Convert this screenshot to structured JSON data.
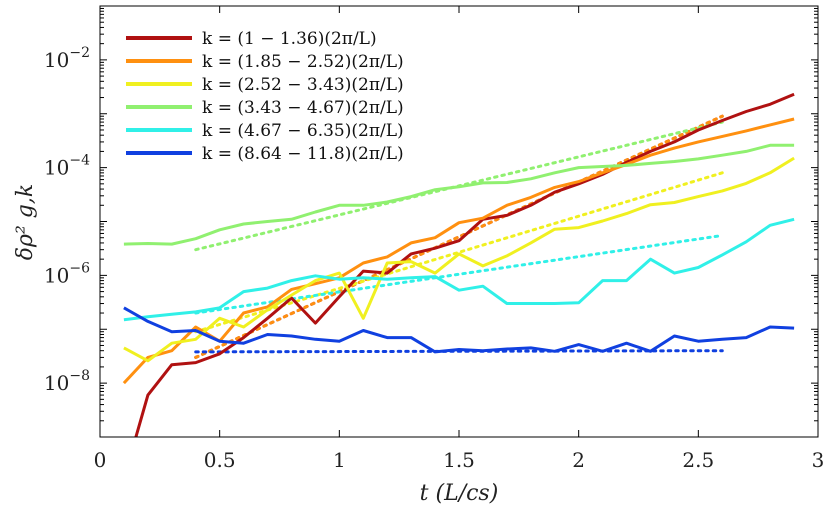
{
  "chart_data": {
    "type": "line",
    "title": "",
    "xlabel": "t (L/c_s)",
    "ylabel": "δρ²_g,k",
    "xlabel_display": "t (L/cs)",
    "ylabel_display": "δρ² g,k",
    "xlim": [
      0,
      3
    ],
    "ylim": [
      1e-09,
      0.1
    ],
    "yscale": "log",
    "xticks": [
      0,
      0.5,
      1,
      1.5,
      2,
      2.5,
      3
    ],
    "xtick_labels": [
      "0",
      "0.5",
      "1",
      "1.5",
      "2",
      "2.5",
      "3"
    ],
    "yticks": [
      1e-08,
      1e-06,
      0.0001,
      0.01
    ],
    "ytick_labels": [
      {
        "base": "10",
        "exp": "−8"
      },
      {
        "base": "10",
        "exp": "−6"
      },
      {
        "base": "10",
        "exp": "−4"
      },
      {
        "base": "10",
        "exp": "−2"
      }
    ],
    "legend_position": "top-left",
    "series": [
      {
        "name": "k = (1 − 1.36)(2π/L)",
        "color": "#b01111",
        "x": [
          0.15,
          0.2,
          0.3,
          0.4,
          0.5,
          0.6,
          0.7,
          0.8,
          0.9,
          1.0,
          1.1,
          1.2,
          1.3,
          1.4,
          1.5,
          1.6,
          1.7,
          1.8,
          1.9,
          2.0,
          2.1,
          2.2,
          2.3,
          2.4,
          2.5,
          2.6,
          2.7,
          2.8,
          2.9
        ],
        "y": [
          1e-09,
          6e-09,
          2.2e-08,
          2.4e-08,
          3.5e-08,
          7e-08,
          1.6e-07,
          3.8e-07,
          1.3e-07,
          4e-07,
          1.2e-06,
          1.1e-06,
          2.5e-06,
          3.2e-06,
          4.4e-06,
          1.1e-05,
          1.3e-05,
          2e-05,
          3.5e-05,
          5e-05,
          7.5e-05,
          0.000125,
          0.0002,
          0.0003,
          0.0005,
          0.00075,
          0.0011,
          0.0015,
          0.0023
        ],
        "fit": {
          "x": [
            0.4,
            2.6
          ],
          "y": [
            3e-08,
            0.0009
          ]
        }
      },
      {
        "name": "k = (1.85 − 2.52)(2π/L)",
        "color": "#ff9010",
        "x": [
          0.1,
          0.2,
          0.3,
          0.4,
          0.5,
          0.6,
          0.7,
          0.8,
          0.9,
          1.0,
          1.1,
          1.2,
          1.3,
          1.4,
          1.5,
          1.6,
          1.7,
          1.8,
          1.9,
          2.0,
          2.1,
          2.2,
          2.3,
          2.4,
          2.5,
          2.6,
          2.7,
          2.8,
          2.9
        ],
        "y": [
          1e-08,
          3e-08,
          4e-08,
          1.1e-07,
          6e-08,
          2e-07,
          2.6e-07,
          5.5e-07,
          7e-07,
          9e-07,
          1.7e-06,
          2.2e-06,
          4e-06,
          5e-06,
          9.5e-06,
          1.15e-05,
          2e-05,
          2.8e-05,
          4.3e-05,
          5.5e-05,
          8e-05,
          0.000115,
          0.00017,
          0.00023,
          0.0003,
          0.00038,
          0.00048,
          0.00062,
          0.0008
        ],
        "fit": {
          "x": [
            0.4,
            2.6
          ],
          "y": [
            3e-08,
            0.0009
          ]
        }
      },
      {
        "name": "k = (2.52 − 3.43)(2π/L)",
        "color": "#f0f020",
        "x": [
          0.1,
          0.2,
          0.3,
          0.4,
          0.5,
          0.6,
          0.7,
          0.8,
          0.9,
          1.0,
          1.1,
          1.2,
          1.3,
          1.4,
          1.5,
          1.6,
          1.7,
          1.8,
          1.9,
          2.0,
          2.1,
          2.2,
          2.3,
          2.4,
          2.5,
          2.6,
          2.7,
          2.8,
          2.9
        ],
        "y": [
          4.5e-08,
          2.6e-08,
          5.5e-08,
          6.5e-08,
          1.6e-07,
          1.1e-07,
          2.3e-07,
          4.3e-07,
          8e-07,
          1.1e-06,
          1.6e-07,
          1.7e-06,
          1.8e-06,
          1.1e-06,
          2.5e-06,
          1.5e-06,
          2.3e-06,
          4e-06,
          7.2e-06,
          7.7e-06,
          1.02e-05,
          1.4e-05,
          2.05e-05,
          2.25e-05,
          2.9e-05,
          3.7e-05,
          5.1e-05,
          8e-05,
          0.00015
        ],
        "fit": {
          "x": [
            0.4,
            2.6
          ],
          "y": [
            9e-08,
            8e-05
          ]
        }
      },
      {
        "name": "k = (3.43 − 4.67)(2π/L)",
        "color": "#90f070",
        "x": [
          0.1,
          0.2,
          0.3,
          0.4,
          0.5,
          0.6,
          0.7,
          0.8,
          0.9,
          1.0,
          1.1,
          1.2,
          1.3,
          1.4,
          1.5,
          1.6,
          1.7,
          1.8,
          1.9,
          2.0,
          2.1,
          2.2,
          2.3,
          2.4,
          2.5,
          2.6,
          2.7,
          2.8,
          2.9
        ],
        "y": [
          3.8e-06,
          3.9e-06,
          3.8e-06,
          4.8e-06,
          7e-06,
          9e-06,
          1e-05,
          1.1e-05,
          1.5e-05,
          2e-05,
          2e-05,
          2.3e-05,
          2.9e-05,
          3.9e-05,
          4.4e-05,
          5.2e-05,
          5.3e-05,
          6.2e-05,
          8e-05,
          0.0001,
          0.000105,
          0.00011,
          0.00012,
          0.00013,
          0.000145,
          0.00017,
          0.0002,
          0.00026,
          0.00026
        ],
        "fit": {
          "x": [
            0.4,
            2.6
          ],
          "y": [
            3e-06,
            0.0007
          ]
        }
      },
      {
        "name": "k = (4.67 − 6.35)(2π/L)",
        "color": "#30f0e8",
        "x": [
          0.1,
          0.2,
          0.3,
          0.4,
          0.5,
          0.6,
          0.7,
          0.8,
          0.9,
          1.0,
          1.1,
          1.2,
          1.3,
          1.4,
          1.5,
          1.6,
          1.7,
          1.8,
          1.9,
          2.0,
          2.1,
          2.2,
          2.3,
          2.4,
          2.5,
          2.6,
          2.7,
          2.8,
          2.9
        ],
        "y": [
          1.5e-07,
          1.7e-07,
          1.9e-07,
          2.1e-07,
          2.5e-07,
          5e-07,
          5.8e-07,
          8e-07,
          9.8e-07,
          8.5e-07,
          9e-07,
          8.5e-07,
          9e-07,
          9.5e-07,
          5.3e-07,
          6.3e-07,
          3e-07,
          3e-07,
          3e-07,
          3.1e-07,
          8e-07,
          8e-07,
          2e-06,
          1.1e-06,
          1.4e-06,
          2.4e-06,
          4.2e-06,
          8.5e-06,
          1.1e-05
        ],
        "fit": {
          "x": [
            0.4,
            2.6
          ],
          "y": [
            2e-07,
            5.5e-06
          ]
        }
      },
      {
        "name": "k = (8.64 − 11.8)(2π/L)",
        "color": "#1040e0",
        "x": [
          0.1,
          0.2,
          0.3,
          0.4,
          0.5,
          0.6,
          0.7,
          0.8,
          0.9,
          1.0,
          1.1,
          1.2,
          1.3,
          1.4,
          1.5,
          1.6,
          1.7,
          1.8,
          1.9,
          2.0,
          2.1,
          2.2,
          2.3,
          2.4,
          2.5,
          2.6,
          2.7,
          2.8,
          2.9
        ],
        "y": [
          2.5e-07,
          1.4e-07,
          9e-08,
          9.5e-08,
          6e-08,
          5.5e-08,
          8e-08,
          7.5e-08,
          6.5e-08,
          6e-08,
          9.5e-08,
          7e-08,
          7e-08,
          3.8e-08,
          4.2e-08,
          4e-08,
          4.3e-08,
          4.5e-08,
          3.9e-08,
          5.2e-08,
          3.9e-08,
          5.5e-08,
          3.9e-08,
          7.5e-08,
          6e-08,
          6.5e-08,
          7e-08,
          1.1e-07,
          1.05e-07
        ],
        "fit": {
          "x": [
            0.4,
            2.6
          ],
          "y": [
            3.8e-08,
            4e-08
          ]
        }
      }
    ]
  }
}
